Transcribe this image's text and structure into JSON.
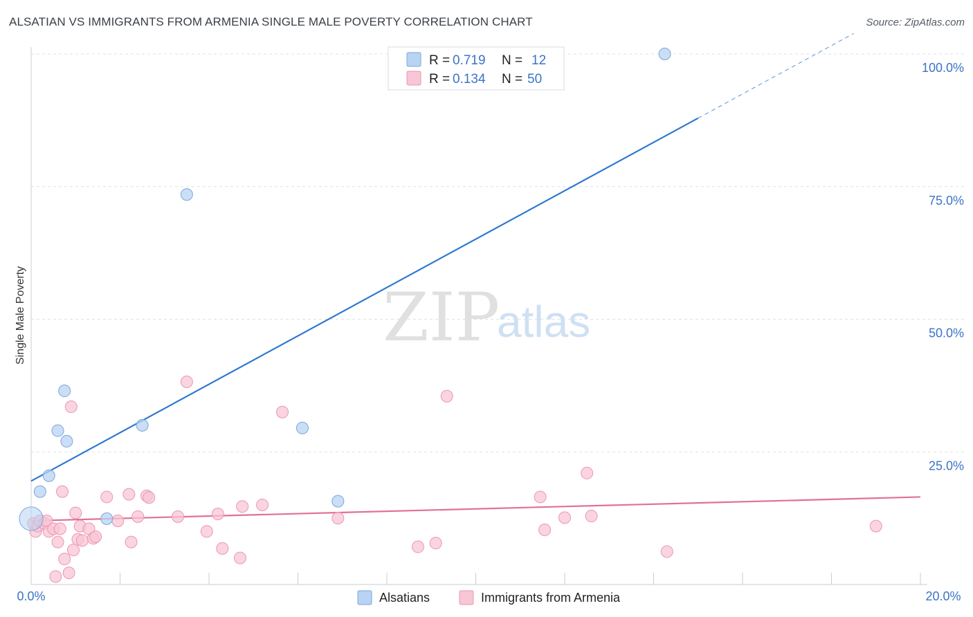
{
  "title": "ALSATIAN VS IMMIGRANTS FROM ARMENIA SINGLE MALE POVERTY CORRELATION CHART",
  "source": "Source: ZipAtlas.com",
  "watermark": {
    "part1": "ZIP",
    "part2": "atlas"
  },
  "colors": {
    "blue_fill": "#b8d3f3",
    "blue_stroke": "#7aa6dc",
    "blue_line": "#2f78d0",
    "pink_fill": "#f8c6d5",
    "pink_stroke": "#ea97b0",
    "pink_line": "#e07098",
    "tick_text": "#3b73c6",
    "grid": "#dde0e6"
  },
  "legend": {
    "rows": [
      {
        "r_label": "R =",
        "r_value": "0.719",
        "n_label": "N =",
        "n_value": "12"
      },
      {
        "r_label": "R =",
        "r_value": "0.134",
        "n_label": "N =",
        "n_value": "50"
      }
    ]
  },
  "chart_data": {
    "type": "scatter",
    "title": "ALSATIAN VS IMMIGRANTS FROM ARMENIA SINGLE MALE POVERTY CORRELATION CHART",
    "xlabel": "",
    "ylabel": "Single Male Poverty",
    "xlim": [
      0,
      20
    ],
    "ylim": [
      0,
      100
    ],
    "x_tick_labels": [
      "0.0%",
      "20.0%"
    ],
    "y_ticks": [
      25,
      50,
      75,
      100
    ],
    "y_tick_labels": [
      "25.0%",
      "50.0%",
      "75.0%",
      "100.0%"
    ],
    "grid": true,
    "legend_position": "top-center",
    "series": [
      {
        "name": "Alsatians",
        "color": "blue",
        "R": 0.719,
        "N": 12,
        "points": [
          {
            "x": 0.0,
            "y": 12.4,
            "big": true
          },
          {
            "x": 0.2,
            "y": 17.5
          },
          {
            "x": 0.4,
            "y": 20.5
          },
          {
            "x": 0.6,
            "y": 29.0
          },
          {
            "x": 0.75,
            "y": 36.5
          },
          {
            "x": 0.8,
            "y": 27.0
          },
          {
            "x": 1.7,
            "y": 12.4
          },
          {
            "x": 2.5,
            "y": 30.0
          },
          {
            "x": 3.5,
            "y": 73.5
          },
          {
            "x": 6.1,
            "y": 29.5
          },
          {
            "x": 6.9,
            "y": 15.7
          },
          {
            "x": 14.25,
            "y": 100.0
          }
        ],
        "trend": {
          "x_start": 0,
          "y_start": 19.5,
          "x_solid_end": 15.0,
          "x_dash_end": 18.5,
          "slope": 4.56
        }
      },
      {
        "name": "Immigrants from Armenia",
        "color": "pink",
        "R": 0.134,
        "N": 50,
        "points": [
          {
            "x": 0.05,
            "y": 11.5
          },
          {
            "x": 0.1,
            "y": 10.0
          },
          {
            "x": 0.15,
            "y": 11.0
          },
          {
            "x": 0.2,
            "y": 12.0
          },
          {
            "x": 0.3,
            "y": 11.5
          },
          {
            "x": 0.35,
            "y": 12.0
          },
          {
            "x": 0.4,
            "y": 10.0
          },
          {
            "x": 0.5,
            "y": 10.5
          },
          {
            "x": 0.55,
            "y": 1.5
          },
          {
            "x": 0.6,
            "y": 8.0
          },
          {
            "x": 0.65,
            "y": 10.5
          },
          {
            "x": 0.7,
            "y": 17.5
          },
          {
            "x": 0.75,
            "y": 4.8
          },
          {
            "x": 0.85,
            "y": 2.2
          },
          {
            "x": 0.9,
            "y": 33.5
          },
          {
            "x": 0.95,
            "y": 6.5
          },
          {
            "x": 1.0,
            "y": 13.5
          },
          {
            "x": 1.05,
            "y": 8.5
          },
          {
            "x": 1.1,
            "y": 11.0
          },
          {
            "x": 1.15,
            "y": 8.3
          },
          {
            "x": 1.3,
            "y": 10.5
          },
          {
            "x": 1.4,
            "y": 8.7
          },
          {
            "x": 1.45,
            "y": 9.0
          },
          {
            "x": 1.7,
            "y": 16.5
          },
          {
            "x": 1.95,
            "y": 12.0
          },
          {
            "x": 2.2,
            "y": 17.0
          },
          {
            "x": 2.25,
            "y": 8.0
          },
          {
            "x": 2.4,
            "y": 12.8
          },
          {
            "x": 2.6,
            "y": 16.7
          },
          {
            "x": 2.65,
            "y": 16.4
          },
          {
            "x": 3.3,
            "y": 12.8
          },
          {
            "x": 3.5,
            "y": 38.2
          },
          {
            "x": 3.95,
            "y": 10.0
          },
          {
            "x": 4.2,
            "y": 13.3
          },
          {
            "x": 4.3,
            "y": 6.8
          },
          {
            "x": 4.7,
            "y": 5.0
          },
          {
            "x": 4.75,
            "y": 14.7
          },
          {
            "x": 5.2,
            "y": 15.0
          },
          {
            "x": 5.65,
            "y": 32.5
          },
          {
            "x": 6.9,
            "y": 12.5
          },
          {
            "x": 8.7,
            "y": 7.1
          },
          {
            "x": 9.1,
            "y": 7.8
          },
          {
            "x": 9.35,
            "y": 35.5
          },
          {
            "x": 11.45,
            "y": 16.5
          },
          {
            "x": 11.55,
            "y": 10.3
          },
          {
            "x": 12.0,
            "y": 12.6
          },
          {
            "x": 12.5,
            "y": 21.0
          },
          {
            "x": 12.6,
            "y": 12.9
          },
          {
            "x": 14.3,
            "y": 6.2
          },
          {
            "x": 19.0,
            "y": 11.0
          }
        ],
        "trend": {
          "x_start": 0,
          "y_start": 12.0,
          "x_end": 20,
          "y_end": 16.5
        }
      }
    ]
  }
}
